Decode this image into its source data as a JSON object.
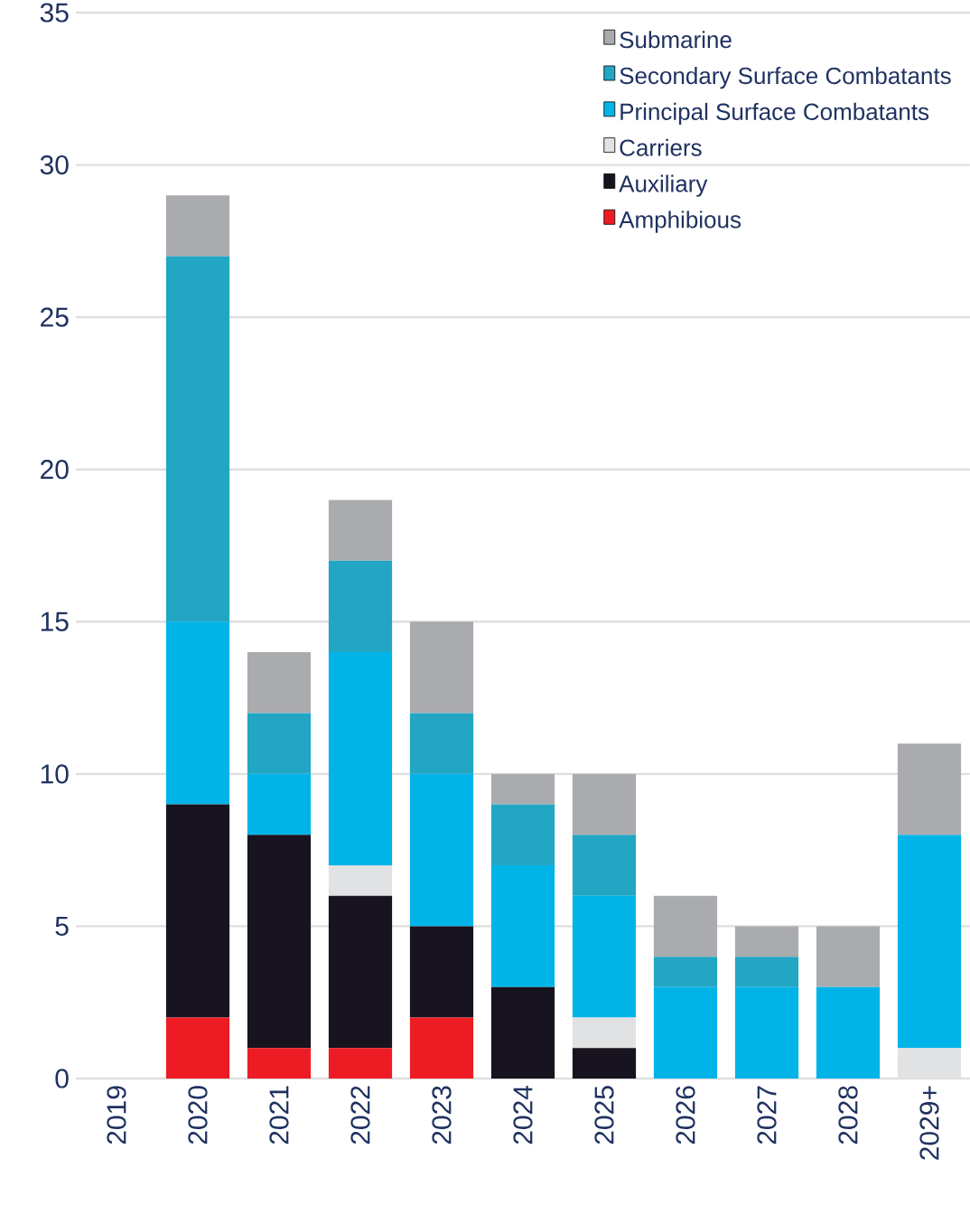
{
  "chart_data": {
    "type": "bar",
    "stacked": true,
    "categories": [
      "2019",
      "2020",
      "2021",
      "2022",
      "2023",
      "2024",
      "2025",
      "2026",
      "2027",
      "2028",
      "2029+"
    ],
    "series": [
      {
        "name": "Amphibious",
        "color": "#ed1c24",
        "values": [
          0,
          2,
          1,
          1,
          2,
          0,
          0,
          0,
          0,
          0,
          0
        ]
      },
      {
        "name": "Auxiliary",
        "color": "#17131f",
        "values": [
          0,
          7,
          7,
          5,
          3,
          3,
          1,
          0,
          0,
          0,
          0
        ]
      },
      {
        "name": "Carriers",
        "color": "#e1e2e3",
        "values": [
          0,
          0,
          0,
          1,
          0,
          0,
          1,
          0,
          0,
          0,
          1
        ]
      },
      {
        "name": "Principal Surface Combatants",
        "color": "#00b4e8",
        "values": [
          0,
          6,
          2,
          7,
          5,
          4,
          4,
          3,
          3,
          3,
          7
        ]
      },
      {
        "name": "Secondary Surface Combatants",
        "color": "#22a6c4",
        "values": [
          0,
          12,
          2,
          3,
          2,
          2,
          2,
          1,
          1,
          0,
          0
        ]
      },
      {
        "name": "Submarine",
        "color": "#a9abae",
        "values": [
          0,
          2,
          2,
          2,
          3,
          1,
          2,
          2,
          1,
          2,
          3
        ]
      }
    ],
    "ylim": [
      0,
      35
    ],
    "yticks": [
      0,
      5,
      10,
      15,
      20,
      25,
      30,
      35
    ],
    "grid": "y",
    "legend": "top right"
  }
}
